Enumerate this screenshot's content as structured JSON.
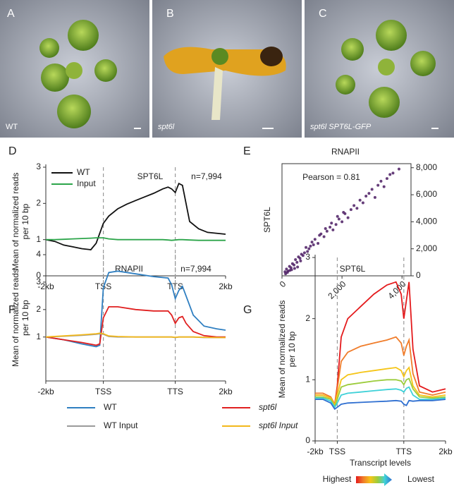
{
  "photos": [
    {
      "letter": "A",
      "caption": "WT"
    },
    {
      "letter": "B",
      "caption": "spt6l"
    },
    {
      "letter": "C",
      "caption": "spt6l SPT6L-GFP"
    }
  ],
  "chart_data": [
    {
      "type": "line",
      "panel": "D",
      "annotations": [
        "SPT6L",
        "n=7,994"
      ],
      "ylabel": [
        "Mean of normalized reads",
        "per 10 bp"
      ],
      "x": [
        0,
        5,
        10,
        15,
        20,
        25,
        28,
        32,
        35,
        40,
        45,
        50,
        55,
        60,
        65,
        68,
        70,
        72,
        74,
        76,
        80,
        85,
        90,
        100
      ],
      "xlim": [
        0,
        100
      ],
      "xticks": [
        {
          "value": 0,
          "label": "-2kb"
        },
        {
          "value": 32,
          "label": "TSS"
        },
        {
          "value": 72,
          "label": "TTS"
        },
        {
          "value": 100,
          "label": "2kb"
        }
      ],
      "ylim": [
        0,
        3
      ],
      "yticks": [
        0,
        1,
        2,
        3
      ],
      "legend": "upper left",
      "series": [
        {
          "name": "WT",
          "color": "#111111",
          "values": [
            1.0,
            0.95,
            0.85,
            0.8,
            0.75,
            0.72,
            0.9,
            1.45,
            1.65,
            1.85,
            1.98,
            2.08,
            2.18,
            2.28,
            2.4,
            2.45,
            2.4,
            2.3,
            2.55,
            2.5,
            1.5,
            1.3,
            1.2,
            1.15
          ]
        },
        {
          "name": "Input",
          "color": "#2ca54a",
          "values": [
            1.0,
            1.0,
            1.01,
            1.02,
            1.03,
            1.04,
            1.05,
            1.05,
            1.02,
            1.0,
            1.0,
            1.0,
            1.0,
            1.0,
            1.0,
            0.99,
            0.98,
            0.99,
            1.0,
            1.0,
            0.99,
            0.98,
            0.98,
            0.98
          ]
        }
      ]
    },
    {
      "type": "scatter",
      "panel": "E",
      "title": "RNAPII",
      "annotations": [
        "Pearson = 0.81"
      ],
      "ylabel": [
        "SPT6L"
      ],
      "color": "#4b1c63",
      "yaxis": "right",
      "xlim": [
        0,
        4300
      ],
      "ylim": [
        0,
        8300
      ],
      "xticks": [
        0,
        {
          "value": 2000,
          "label": "2,000"
        },
        {
          "value": 4000,
          "label": "4,000"
        }
      ],
      "yticks": [
        0,
        {
          "value": 2000,
          "label": "2,000"
        },
        {
          "value": 4000,
          "label": "4,000"
        },
        {
          "value": 6000,
          "label": "6,000"
        },
        {
          "value": 8000,
          "label": "8,000"
        }
      ],
      "x": [
        100,
        150,
        200,
        250,
        300,
        350,
        400,
        450,
        500,
        550,
        600,
        650,
        700,
        800,
        900,
        1000,
        1100,
        1200,
        1300,
        1400,
        1500,
        1600,
        1700,
        1800,
        1900,
        2000,
        2100,
        2200,
        2300,
        2400,
        2500,
        2600,
        2700,
        2800,
        2900,
        3000,
        3100,
        3200,
        3300,
        3400,
        3500,
        3600,
        3700,
        3900,
        120,
        180,
        260,
        320,
        420,
        520,
        620,
        750,
        850,
        950,
        1050,
        1250,
        1450,
        1650,
        1850,
        2050
      ],
      "y": [
        300,
        500,
        350,
        700,
        600,
        900,
        800,
        1200,
        1000,
        1400,
        1300,
        1600,
        1500,
        2100,
        2000,
        2500,
        2700,
        2400,
        3100,
        2900,
        3300,
        3600,
        3400,
        3800,
        4200,
        4000,
        4600,
        4300,
        4900,
        5200,
        5000,
        5600,
        5400,
        5900,
        6100,
        6400,
        5800,
        6700,
        7000,
        6600,
        7200,
        7500,
        7600,
        7900,
        150,
        250,
        400,
        450,
        550,
        650,
        1100,
        1700,
        1800,
        2200,
        2300,
        3000,
        3500,
        3900,
        4400,
        4700
      ]
    },
    {
      "type": "line",
      "panel": "F",
      "annotations": [
        "RNAPII",
        "n=7,994"
      ],
      "ylabel": [
        "Mean of normalized reads",
        "per 10 bp"
      ],
      "x": [
        0,
        10,
        20,
        28,
        30,
        32,
        35,
        40,
        50,
        60,
        68,
        70,
        72,
        74,
        76,
        78,
        82,
        88,
        95,
        100
      ],
      "xlim": [
        0,
        100
      ],
      "xticks": [
        {
          "value": 0,
          "label": "-2kb"
        },
        {
          "value": 32,
          "label": "TSS"
        },
        {
          "value": 72,
          "label": "TTS"
        },
        {
          "value": 100,
          "label": "2kb"
        }
      ],
      "ylim": [
        -0.6,
        4
      ],
      "yticks": [
        1,
        2,
        3,
        4
      ],
      "legend": "below",
      "series": [
        {
          "name": "WT",
          "color": "#2f7fc1",
          "values": [
            1.0,
            0.9,
            0.75,
            0.65,
            0.7,
            2.8,
            3.35,
            3.4,
            3.3,
            3.2,
            3.15,
            2.9,
            2.4,
            2.7,
            2.85,
            2.5,
            1.8,
            1.4,
            1.3,
            1.25
          ]
        },
        {
          "name": "spt6l",
          "color": "#e02020",
          "values": [
            1.0,
            0.9,
            0.8,
            0.7,
            0.75,
            1.7,
            2.1,
            2.1,
            2.0,
            1.95,
            1.95,
            1.8,
            1.5,
            1.7,
            1.75,
            1.5,
            1.2,
            1.05,
            1.0,
            1.0
          ]
        },
        {
          "name": "WT Input",
          "color": "#9a9a9a",
          "values": [
            1.0,
            1.03,
            1.06,
            1.1,
            1.12,
            1.1,
            1.02,
            1.0,
            1.0,
            1.0,
            1.0,
            1.0,
            0.98,
            1.0,
            1.0,
            1.0,
            1.0,
            0.98,
            0.98,
            0.98
          ]
        },
        {
          "name": "spt6l  Input",
          "color": "#f2b81c",
          "values": [
            1.0,
            1.04,
            1.08,
            1.12,
            1.14,
            1.12,
            1.04,
            1.02,
            1.0,
            1.0,
            1.0,
            1.0,
            0.99,
            1.0,
            1.0,
            1.0,
            1.0,
            0.99,
            0.98,
            0.98
          ]
        }
      ]
    },
    {
      "type": "line",
      "panel": "G",
      "annotations": [
        "SPT6L"
      ],
      "ylabel": [
        "Mean of normalized reads",
        "per 10 bp"
      ],
      "xlabel": "Transcript levels",
      "gradient_legend": [
        "Highest",
        "Lowest"
      ],
      "x": [
        0,
        6,
        12,
        15,
        17,
        20,
        25,
        35,
        45,
        55,
        62,
        66,
        68,
        70,
        72,
        75,
        80,
        90,
        100
      ],
      "xlim": [
        0,
        100
      ],
      "xticks": [
        {
          "value": 0,
          "label": "-2kb"
        },
        {
          "value": 17,
          "label": "TSS"
        },
        {
          "value": 68,
          "label": "TTS"
        },
        {
          "value": 100,
          "label": "2kb"
        }
      ],
      "ylim": [
        0,
        3
      ],
      "yticks": [
        0,
        1,
        2,
        3
      ],
      "series": [
        {
          "color": "#e41a1c",
          "values": [
            0.75,
            0.75,
            0.7,
            0.6,
            0.9,
            1.7,
            2.0,
            2.2,
            2.4,
            2.55,
            2.6,
            2.4,
            2.0,
            2.3,
            2.6,
            1.5,
            0.9,
            0.8,
            0.85
          ]
        },
        {
          "color": "#f07c2a",
          "values": [
            0.78,
            0.78,
            0.72,
            0.6,
            0.85,
            1.3,
            1.45,
            1.55,
            1.6,
            1.65,
            1.7,
            1.6,
            1.4,
            1.55,
            1.65,
            1.1,
            0.8,
            0.75,
            0.8
          ]
        },
        {
          "color": "#f5c518",
          "values": [
            0.75,
            0.75,
            0.7,
            0.58,
            0.75,
            1.0,
            1.08,
            1.12,
            1.15,
            1.18,
            1.2,
            1.15,
            1.05,
            1.15,
            1.2,
            0.9,
            0.75,
            0.72,
            0.75
          ]
        },
        {
          "color": "#9ccc3c",
          "values": [
            0.72,
            0.72,
            0.68,
            0.56,
            0.68,
            0.88,
            0.92,
            0.95,
            0.98,
            1.0,
            1.0,
            0.98,
            0.92,
            1.0,
            1.02,
            0.85,
            0.72,
            0.7,
            0.72
          ]
        },
        {
          "color": "#3fd1d8",
          "values": [
            0.7,
            0.7,
            0.65,
            0.55,
            0.62,
            0.75,
            0.78,
            0.8,
            0.82,
            0.84,
            0.85,
            0.83,
            0.8,
            0.86,
            0.88,
            0.75,
            0.68,
            0.68,
            0.7
          ]
        },
        {
          "color": "#2f6fd1",
          "values": [
            0.68,
            0.68,
            0.62,
            0.52,
            0.55,
            0.6,
            0.62,
            0.63,
            0.64,
            0.65,
            0.66,
            0.65,
            0.6,
            0.58,
            0.66,
            0.65,
            0.66,
            0.66,
            0.68
          ]
        }
      ]
    }
  ]
}
